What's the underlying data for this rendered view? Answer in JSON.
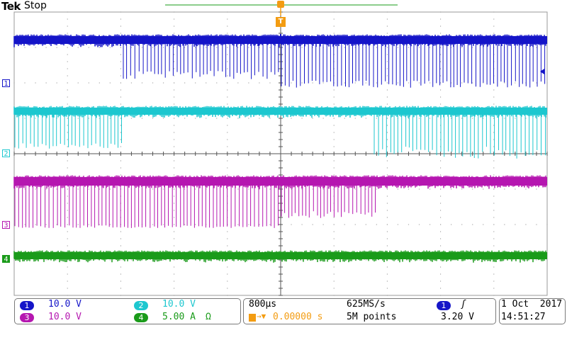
{
  "header": {
    "brand": "Tek",
    "run_state": "Stop"
  },
  "channel_markers": {
    "ch1": "1",
    "ch2": "2",
    "ch3": "3",
    "ch4": "4"
  },
  "trigger": {
    "marker_label": "T",
    "position_label": "T"
  },
  "channels": [
    {
      "id": "1",
      "scale": "10.0 V",
      "color": "#1515c8"
    },
    {
      "id": "2",
      "scale": "10.0 V",
      "color": "#1dc7cf"
    },
    {
      "id": "3",
      "scale": "10.0 V",
      "color": "#b517b0"
    },
    {
      "id": "4",
      "scale": "5.00 A",
      "unit_symbol": "Ω",
      "color": "#1a9b1a"
    }
  ],
  "timebase": {
    "scale": "800µs",
    "sample_rate": "625MS/s",
    "trigger_delay": "0.00000 s",
    "record_length": "5M points"
  },
  "trigger_setup": {
    "source": "1",
    "slope_symbol": "ʃ",
    "level": "3.20 V"
  },
  "datetime": {
    "date": "1 Oct  2017",
    "time": "14:51:27"
  },
  "colors": {
    "ch1": "#1515c8",
    "ch2": "#1dc7cf",
    "ch3": "#b517b0",
    "ch4": "#1a9b1a",
    "trigger_orange": "#f39c12",
    "graticule": "#9a9a9a"
  }
}
